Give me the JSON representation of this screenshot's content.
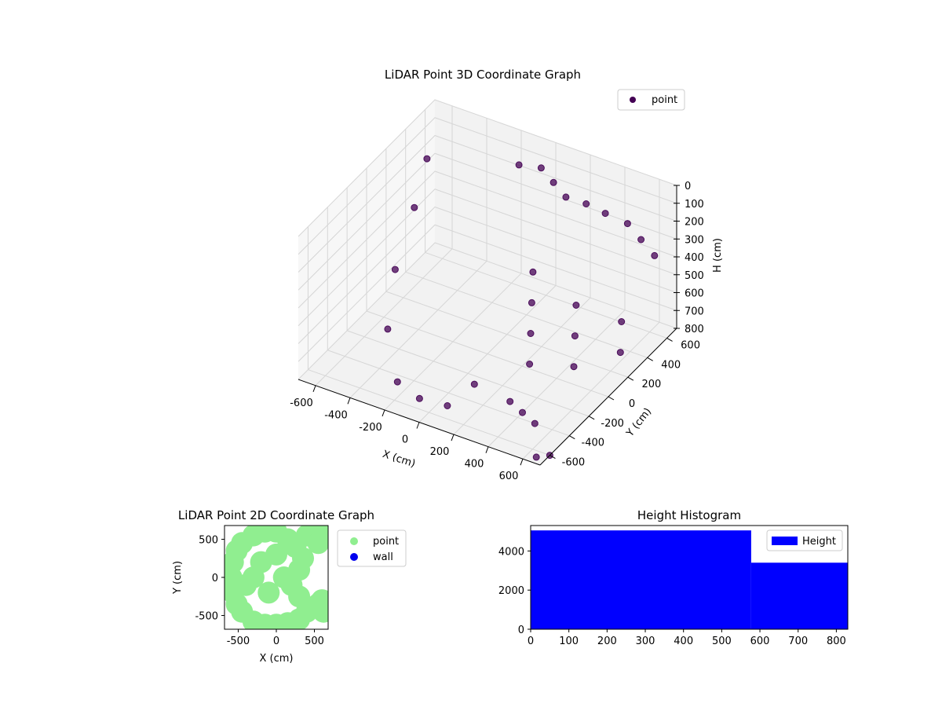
{
  "chart_data": [
    {
      "type": "scatter",
      "title": "LiDAR Point 3D Coordinate Graph",
      "xlabel": "X (cm)",
      "ylabel": "Y (cm)",
      "zlabel": "H (cm)",
      "xlim": [
        -700,
        700
      ],
      "ylim": [
        -700,
        700
      ],
      "zlim": [
        0,
        800
      ],
      "zinverted": true,
      "xticks": [
        "-600",
        "-400",
        "-200",
        "0",
        "200",
        "400",
        "600"
      ],
      "yticks": [
        "-600",
        "-400",
        "-200",
        "0",
        "200",
        "400",
        "600"
      ],
      "zticks": [
        "0",
        "100",
        "200",
        "300",
        "400",
        "500",
        "600",
        "700",
        "800"
      ],
      "legend": {
        "position": "upper-right",
        "entries": [
          "point"
        ]
      },
      "series": [
        {
          "name": "point",
          "color": "#440154",
          "points": [
            [
              -520,
              300,
              50
            ],
            [
              -480,
              100,
              200
            ],
            [
              -450,
              -150,
              400
            ],
            [
              -380,
              -350,
              600
            ],
            [
              -250,
              -480,
              780
            ],
            [
              -100,
              -520,
              800
            ],
            [
              50,
              -500,
              800
            ],
            [
              150,
              -400,
              700
            ],
            [
              -100,
              500,
              50
            ],
            [
              0,
              550,
              60
            ],
            [
              100,
              500,
              80
            ],
            [
              200,
              450,
              100
            ],
            [
              300,
              480,
              120
            ],
            [
              400,
              500,
              150
            ],
            [
              500,
              550,
              200
            ],
            [
              550,
              600,
              300
            ],
            [
              600,
              650,
              400
            ],
            [
              150,
              200,
              400
            ],
            [
              200,
              100,
              500
            ],
            [
              250,
              0,
              600
            ],
            [
              300,
              -100,
              700
            ],
            [
              400,
              200,
              500
            ],
            [
              450,
              100,
              600
            ],
            [
              500,
              0,
              700
            ],
            [
              550,
              400,
              650
            ],
            [
              600,
              300,
              750
            ],
            [
              300,
              -300,
              800
            ],
            [
              400,
              -350,
              800
            ],
            [
              500,
              -400,
              800
            ],
            [
              650,
              -650,
              800
            ],
            [
              700,
              -600,
              800
            ]
          ]
        }
      ]
    },
    {
      "type": "scatter",
      "title": "LiDAR Point 2D Coordinate Graph",
      "xlabel": "X (cm)",
      "ylabel": "Y (cm)",
      "xlim": [
        -680,
        680
      ],
      "ylim": [
        -680,
        680
      ],
      "xticks": [
        "-500",
        "0",
        "500"
      ],
      "yticks": [
        "-500",
        "0",
        "500"
      ],
      "legend": {
        "position": "outside-right",
        "entries": [
          "point",
          "wall"
        ]
      },
      "series": [
        {
          "name": "point",
          "color": "#90ee90",
          "points": [
            [
              -590,
              0
            ],
            [
              -570,
              200
            ],
            [
              -570,
              -200
            ],
            [
              -520,
              350
            ],
            [
              -520,
              -350
            ],
            [
              -450,
              450
            ],
            [
              -450,
              -450
            ],
            [
              -300,
              550
            ],
            [
              -300,
              -580
            ],
            [
              -150,
              600
            ],
            [
              -150,
              -620
            ],
            [
              0,
              600
            ],
            [
              0,
              -620
            ],
            [
              150,
              500
            ],
            [
              150,
              -600
            ],
            [
              250,
              400
            ],
            [
              300,
              -550
            ],
            [
              350,
              250
            ],
            [
              400,
              -450
            ],
            [
              300,
              100
            ],
            [
              400,
              550
            ],
            [
              500,
              600
            ],
            [
              600,
              620
            ],
            [
              550,
              450
            ],
            [
              300,
              -250
            ],
            [
              200,
              -100
            ],
            [
              -300,
              0
            ],
            [
              -200,
              200
            ],
            [
              -100,
              -200
            ],
            [
              100,
              0
            ],
            [
              0,
              300
            ],
            [
              -400,
              -100
            ],
            [
              550,
              -350
            ],
            [
              600,
              -300
            ],
            [
              620,
              -450
            ]
          ]
        },
        {
          "name": "wall",
          "color": "#0000ee",
          "points": []
        }
      ]
    },
    {
      "type": "bar",
      "title": "Height Histogram",
      "xlim": [
        0,
        830
      ],
      "ylim": [
        0,
        5300
      ],
      "xticks": [
        "0",
        "100",
        "200",
        "300",
        "400",
        "500",
        "600",
        "700",
        "800"
      ],
      "yticks": [
        "0",
        "2000",
        "4000"
      ],
      "legend": {
        "position": "upper-right",
        "entries": [
          "Height"
        ]
      },
      "series": [
        {
          "name": "Height",
          "color": "#0000ff",
          "bins": [
            {
              "start": 0,
              "end": 577,
              "count": 5050
            },
            {
              "start": 577,
              "end": 830,
              "count": 3400
            }
          ]
        }
      ]
    }
  ]
}
